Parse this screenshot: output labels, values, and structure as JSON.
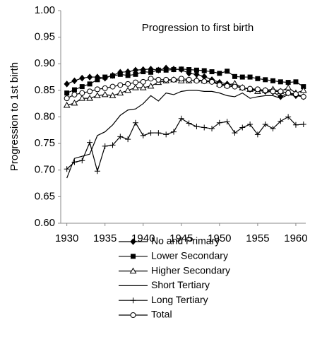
{
  "chart_data": {
    "type": "line",
    "title": "Progression to first birth",
    "y_label": "Progression to 1st birth",
    "x": [
      1930,
      1931,
      1932,
      1933,
      1934,
      1935,
      1936,
      1937,
      1938,
      1939,
      1940,
      1941,
      1942,
      1943,
      1944,
      1945,
      1946,
      1947,
      1948,
      1949,
      1950,
      1951,
      1952,
      1953,
      1954,
      1955,
      1956,
      1957,
      1958,
      1959,
      1960,
      1961
    ],
    "xlim": [
      1929.2,
      1961.3
    ],
    "xticks": [
      1930,
      1935,
      1940,
      1945,
      1950,
      1955,
      1960
    ],
    "ylim": [
      0.6,
      1.0
    ],
    "yticks": [
      {
        "value": 0.6,
        "label": "0.60"
      },
      {
        "value": 0.65,
        "label": "0.65"
      },
      {
        "value": 0.7,
        "label": "0.70"
      },
      {
        "value": 0.75,
        "label": "0.75"
      },
      {
        "value": 0.8,
        "label": "0.80"
      },
      {
        "value": 0.85,
        "label": "0.85"
      },
      {
        "value": 0.9,
        "label": "0.90"
      },
      {
        "value": 0.95,
        "label": "0.95"
      },
      {
        "value": 1.0,
        "label": "1.00"
      }
    ],
    "grid": false,
    "legend": "bottom",
    "series": [
      {
        "name": "No and Primary",
        "color": "#000000",
        "marker": "diamond",
        "values": [
          0.862,
          0.868,
          0.873,
          0.875,
          0.875,
          0.873,
          0.878,
          0.884,
          0.885,
          0.888,
          0.889,
          0.89,
          0.888,
          0.892,
          0.89,
          0.889,
          0.882,
          0.88,
          0.876,
          0.87,
          0.865,
          0.862,
          0.858,
          0.855,
          0.852,
          0.85,
          0.848,
          0.847,
          0.838,
          0.845,
          0.84,
          0.838
        ]
      },
      {
        "name": "Lower Secondary",
        "color": "#000000",
        "marker": "square",
        "values": [
          0.845,
          0.851,
          0.857,
          0.862,
          0.87,
          0.875,
          0.877,
          0.88,
          0.878,
          0.88,
          0.885,
          0.884,
          0.888,
          0.888,
          0.889,
          0.89,
          0.889,
          0.888,
          0.887,
          0.885,
          0.882,
          0.886,
          0.876,
          0.875,
          0.875,
          0.872,
          0.87,
          0.868,
          0.866,
          0.865,
          0.866,
          0.857
        ]
      },
      {
        "name": "Higher Secondary",
        "color": "#000000",
        "marker": "triangle",
        "values": [
          0.822,
          0.826,
          0.835,
          0.835,
          0.84,
          0.842,
          0.84,
          0.845,
          0.85,
          0.855,
          0.855,
          0.858,
          0.865,
          0.868,
          0.87,
          0.868,
          0.868,
          0.87,
          0.868,
          0.868,
          0.862,
          0.86,
          0.863,
          0.855,
          0.852,
          0.848,
          0.85,
          0.852,
          0.848,
          0.855,
          0.845,
          0.85
        ]
      },
      {
        "name": "Short Tertiary",
        "color": "#000000",
        "marker": "none",
        "values": [
          0.685,
          0.722,
          0.726,
          0.73,
          0.765,
          0.772,
          0.785,
          0.803,
          0.813,
          0.815,
          0.825,
          0.84,
          0.83,
          0.845,
          0.842,
          0.848,
          0.85,
          0.85,
          0.848,
          0.848,
          0.845,
          0.84,
          0.838,
          0.845,
          0.835,
          0.838,
          0.84,
          0.84,
          0.835,
          0.842,
          0.84,
          0.84
        ]
      },
      {
        "name": "Long Tertiary",
        "color": "#000000",
        "marker": "plus",
        "values": [
          0.702,
          0.715,
          0.718,
          0.752,
          0.698,
          0.745,
          0.747,
          0.763,
          0.758,
          0.789,
          0.765,
          0.77,
          0.77,
          0.767,
          0.772,
          0.797,
          0.788,
          0.782,
          0.78,
          0.778,
          0.789,
          0.791,
          0.77,
          0.78,
          0.786,
          0.767,
          0.786,
          0.778,
          0.792,
          0.8,
          0.785,
          0.786
        ]
      },
      {
        "name": "Total",
        "color": "#000000",
        "marker": "circle",
        "values": [
          0.835,
          0.842,
          0.845,
          0.848,
          0.852,
          0.854,
          0.857,
          0.86,
          0.862,
          0.865,
          0.866,
          0.872,
          0.87,
          0.87,
          0.87,
          0.872,
          0.87,
          0.868,
          0.867,
          0.866,
          0.86,
          0.858,
          0.857,
          0.855,
          0.853,
          0.852,
          0.85,
          0.848,
          0.848,
          0.845,
          0.843,
          0.838
        ]
      }
    ]
  }
}
